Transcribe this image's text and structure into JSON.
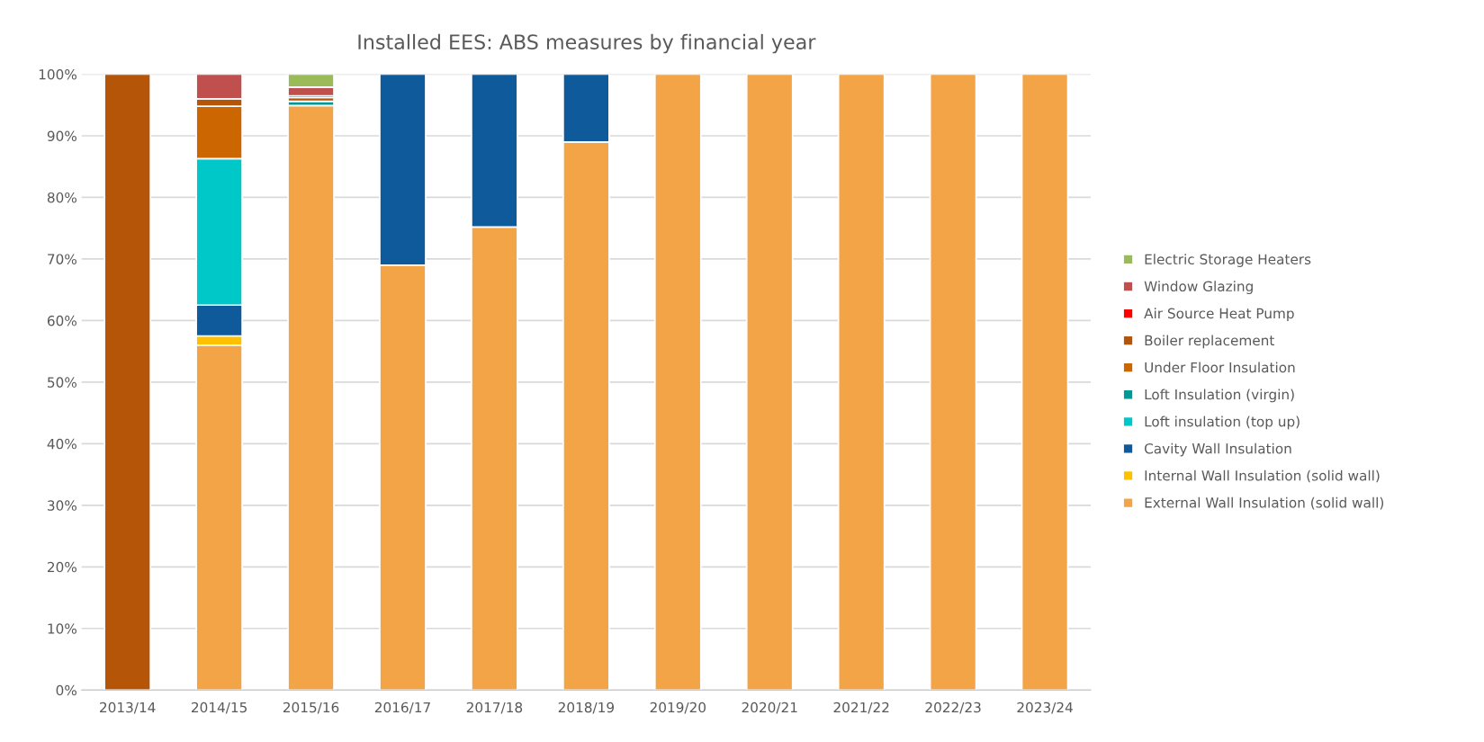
{
  "chart_data": {
    "type": "bar",
    "title": "Installed EES: ABS measures by financial year",
    "stacked": true,
    "categories": [
      "2013/14",
      "2014/15",
      "2015/16",
      "2016/17",
      "2017/18",
      "2018/19",
      "2019/20",
      "2020/21",
      "2021/22",
      "2022/23",
      "2023/24"
    ],
    "series": [
      {
        "name": "External Wall Insulation (solid wall)",
        "color": "#f2a446",
        "values": [
          null,
          56,
          94.9,
          69,
          75.2,
          89,
          100,
          100,
          100,
          100,
          100
        ]
      },
      {
        "name": "Internal Wall Insulation (solid wall)",
        "color": "#ffc000",
        "values": [
          null,
          1.5,
          null,
          null,
          null,
          null,
          null,
          null,
          null,
          null,
          null
        ]
      },
      {
        "name": "Cavity Wall Insulation",
        "color": "#0e5a9a",
        "values": [
          null,
          5,
          null,
          31,
          24.8,
          11,
          null,
          null,
          null,
          null,
          null
        ]
      },
      {
        "name": "Loft insulation (top up)",
        "color": "#00c8c8",
        "values": [
          null,
          23.8,
          null,
          null,
          null,
          null,
          null,
          null,
          null,
          null,
          null
        ]
      },
      {
        "name": "Loft Insulation (virgin)",
        "color": "#009999",
        "values": [
          null,
          null,
          0.7,
          null,
          null,
          null,
          null,
          null,
          null,
          null,
          null
        ]
      },
      {
        "name": "Under Floor Insulation",
        "color": "#cc6600",
        "values": [
          null,
          8.5,
          null,
          null,
          null,
          null,
          null,
          null,
          null,
          null,
          null
        ]
      },
      {
        "name": "Boiler replacement",
        "color": "#b45508",
        "values": [
          100,
          1.2,
          0.6,
          null,
          null,
          null,
          null,
          null,
          null,
          null,
          null
        ]
      },
      {
        "name": "Air Source Heat Pump",
        "color": "#ff0000",
        "values": [
          null,
          null,
          0.3,
          null,
          null,
          null,
          null,
          null,
          null,
          null,
          null
        ]
      },
      {
        "name": "Window Glazing",
        "color": "#c0504d",
        "values": [
          null,
          4,
          1.4,
          null,
          null,
          null,
          null,
          null,
          null,
          null,
          null
        ]
      },
      {
        "name": "Electric Storage Heaters",
        "color": "#9bbb59",
        "values": [
          null,
          null,
          2.1,
          null,
          null,
          null,
          null,
          null,
          null,
          null,
          null
        ]
      }
    ],
    "ylim": [
      0,
      100
    ],
    "yticks": [
      {
        "value": 0,
        "label": "0%"
      },
      {
        "value": 10,
        "label": "10%"
      },
      {
        "value": 20,
        "label": "20%"
      },
      {
        "value": 30,
        "label": "30%"
      },
      {
        "value": 40,
        "label": "40%"
      },
      {
        "value": 50,
        "label": "50%"
      },
      {
        "value": 60,
        "label": "60%"
      },
      {
        "value": 70,
        "label": "70%"
      },
      {
        "value": 80,
        "label": "80%"
      },
      {
        "value": 90,
        "label": "90%"
      },
      {
        "value": 100,
        "label": "100%"
      }
    ],
    "grid": "y",
    "legend": "right"
  }
}
